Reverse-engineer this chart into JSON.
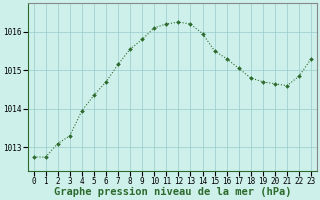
{
  "x": [
    0,
    1,
    2,
    3,
    4,
    5,
    6,
    7,
    8,
    9,
    10,
    11,
    12,
    13,
    14,
    15,
    16,
    17,
    18,
    19,
    20,
    21,
    22,
    23
  ],
  "y": [
    1012.75,
    1012.75,
    1013.1,
    1013.3,
    1013.95,
    1014.35,
    1014.7,
    1015.15,
    1015.55,
    1015.8,
    1016.1,
    1016.2,
    1016.25,
    1016.2,
    1015.95,
    1015.5,
    1015.3,
    1015.05,
    1014.8,
    1014.7,
    1014.65,
    1014.6,
    1014.85,
    1015.3
  ],
  "line_color": "#2d6a2d",
  "marker": "D",
  "marker_size": 2.0,
  "bg_color": "#cdf0ea",
  "grid_color": "#99cccc",
  "xlabel": "Graphe pression niveau de la mer (hPa)",
  "xlabel_fontsize": 7.5,
  "ylabel_ticks": [
    1013,
    1014,
    1015,
    1016
  ],
  "xtick_labels": [
    "0",
    "1",
    "2",
    "3",
    "4",
    "5",
    "6",
    "7",
    "8",
    "9",
    "10",
    "11",
    "12",
    "13",
    "14",
    "15",
    "16",
    "17",
    "18",
    "19",
    "20",
    "21",
    "22",
    "23"
  ],
  "ylim": [
    1012.4,
    1016.75
  ],
  "xlim": [
    -0.5,
    23.5
  ],
  "tick_fontsize": 5.5,
  "border_color": "#2d6a2d",
  "line_width": 0.8,
  "spine_color": "#888888"
}
